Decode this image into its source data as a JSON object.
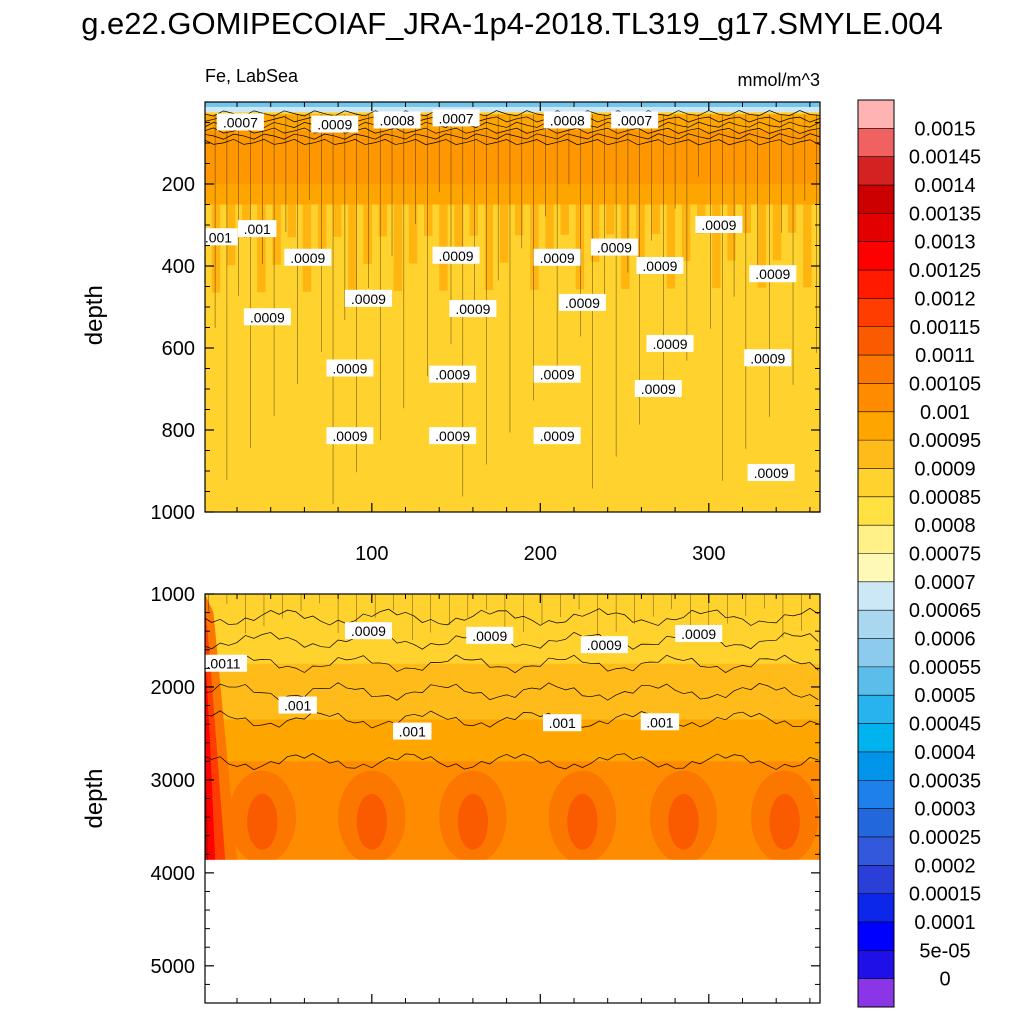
{
  "title": "g.e22.GOMIPECOIAF_JRA-1p4-2018.TL319_g17.SMYLE.004",
  "panel_left_label": "Fe, LabSea",
  "panel_right_label": "mmol/m^3",
  "chart_data": [
    {
      "type": "heatmap",
      "name": "upper",
      "xlabel": "",
      "ylabel": "depth",
      "xlim": [
        1,
        366
      ],
      "ylim": [
        0,
        1000
      ],
      "y_inverted": true,
      "xticks": [
        100,
        200,
        300
      ],
      "yticks": [
        200,
        400,
        600,
        800,
        1000
      ],
      "contour_labels": [
        {
          "text": ".0007",
          "x": 22,
          "y": 50
        },
        {
          "text": ".0009",
          "x": 78,
          "y": 55
        },
        {
          "text": ".0008",
          "x": 115,
          "y": 45
        },
        {
          "text": ".0007",
          "x": 150,
          "y": 40
        },
        {
          "text": ".0008",
          "x": 216,
          "y": 45
        },
        {
          "text": ".0007",
          "x": 256,
          "y": 45
        },
        {
          "text": ".001",
          "x": 9,
          "y": 330
        },
        {
          "text": ".001",
          "x": 32,
          "y": 310
        },
        {
          "text": ".0009",
          "x": 62,
          "y": 380
        },
        {
          "text": ".0009",
          "x": 38,
          "y": 525
        },
        {
          "text": ".0009",
          "x": 98,
          "y": 480
        },
        {
          "text": ".0009",
          "x": 150,
          "y": 375
        },
        {
          "text": ".0009",
          "x": 160,
          "y": 505
        },
        {
          "text": ".0009",
          "x": 210,
          "y": 380
        },
        {
          "text": ".0009",
          "x": 225,
          "y": 490
        },
        {
          "text": ".0009",
          "x": 244,
          "y": 355
        },
        {
          "text": ".0009",
          "x": 271,
          "y": 400
        },
        {
          "text": ".0009",
          "x": 277,
          "y": 590
        },
        {
          "text": ".0009",
          "x": 306,
          "y": 300
        },
        {
          "text": ".0009",
          "x": 338,
          "y": 420
        },
        {
          "text": ".0009",
          "x": 87,
          "y": 650
        },
        {
          "text": ".0009",
          "x": 148,
          "y": 665
        },
        {
          "text": ".0009",
          "x": 210,
          "y": 665
        },
        {
          "text": ".0009",
          "x": 270,
          "y": 700
        },
        {
          "text": ".0009",
          "x": 335,
          "y": 625
        },
        {
          "text": ".0009",
          "x": 87,
          "y": 815
        },
        {
          "text": ".0009",
          "x": 148,
          "y": 815
        },
        {
          "text": ".0009",
          "x": 210,
          "y": 815
        },
        {
          "text": ".0009",
          "x": 337,
          "y": 905
        }
      ]
    },
    {
      "type": "heatmap",
      "name": "lower",
      "xlabel": "",
      "ylabel": "depth",
      "xlim": [
        1,
        366
      ],
      "ylim": [
        1000,
        5400
      ],
      "y_inverted": true,
      "yticks": [
        1000,
        2000,
        3000,
        4000,
        5000
      ],
      "data_bottom_depth": 3860,
      "contour_labels": [
        {
          "text": ".0011",
          "x": 12,
          "y": 1750
        },
        {
          "text": ".001",
          "x": 56,
          "y": 2200
        },
        {
          "text": ".0009",
          "x": 98,
          "y": 1400
        },
        {
          "text": ".0009",
          "x": 170,
          "y": 1450
        },
        {
          "text": ".0009",
          "x": 238,
          "y": 1550
        },
        {
          "text": ".0009",
          "x": 294,
          "y": 1430
        },
        {
          "text": ".001",
          "x": 124,
          "y": 2480
        },
        {
          "text": ".001",
          "x": 213,
          "y": 2390
        },
        {
          "text": ".001",
          "x": 271,
          "y": 2380
        }
      ]
    }
  ],
  "colorbar": {
    "labels": [
      "0.0015",
      "0.00145",
      "0.0014",
      "0.00135",
      "0.0013",
      "0.00125",
      "0.0012",
      "0.00115",
      "0.0011",
      "0.00105",
      "0.001",
      "0.00095",
      "0.0009",
      "0.00085",
      "0.0008",
      "0.00075",
      "0.0007",
      "0.00065",
      "0.0006",
      "0.00055",
      "0.0005",
      "0.00045",
      "0.0004",
      "0.00035",
      "0.0003",
      "0.00025",
      "0.0002",
      "0.00015",
      "0.0001",
      "5e-05",
      "0"
    ],
    "colors": [
      "#ffb3b3",
      "#f06262",
      "#d42222",
      "#cc0000",
      "#e30000",
      "#ff0000",
      "#ff1a00",
      "#ff3d00",
      "#fa5a00",
      "#fb7700",
      "#ff8c00",
      "#ffa500",
      "#ffbb1a",
      "#ffd22e",
      "#ffe141",
      "#fff088",
      "#fff9b8",
      "#cce8f6",
      "#a9d7f0",
      "#8ccbed",
      "#5bbde9",
      "#28b3ef",
      "#00b2ee",
      "#0095eb",
      "#1e80ea",
      "#2268dc",
      "#3358dc",
      "#2c3ed8",
      "#0c26ea",
      "#0000ff",
      "#2010e8",
      "#8a36e6"
    ]
  }
}
